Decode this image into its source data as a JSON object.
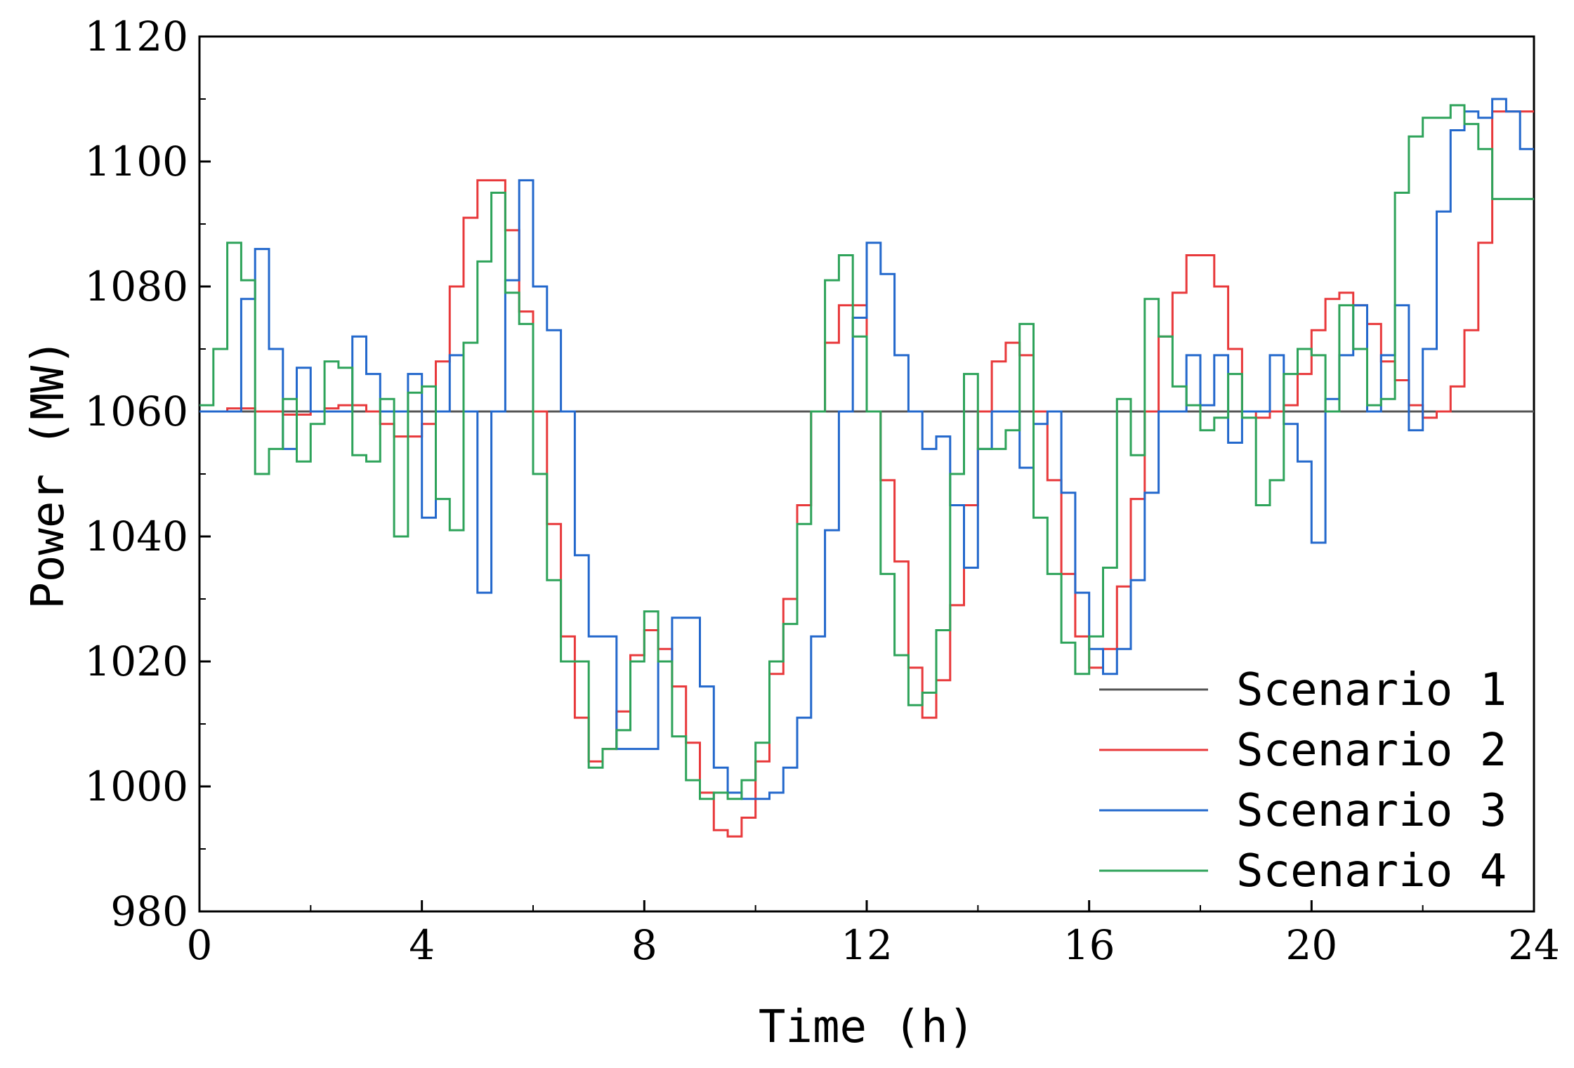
{
  "chart_data": {
    "type": "line",
    "title": "",
    "xlabel": "Time (h)",
    "ylabel": "Power (MW)",
    "xlim": [
      0,
      24
    ],
    "ylim": [
      980,
      1120
    ],
    "xticks": [
      0,
      4,
      8,
      12,
      16,
      20,
      24
    ],
    "yticks": [
      980,
      1000,
      1020,
      1040,
      1060,
      1080,
      1100,
      1120
    ],
    "legend_position": "bottom-right",
    "step": 0.25,
    "series": [
      {
        "name": "Scenario 1",
        "color": "#555555",
        "values": [
          1060,
          1060,
          1060,
          1060,
          1060,
          1060,
          1060,
          1060,
          1060,
          1060,
          1060,
          1060,
          1060,
          1060,
          1060,
          1060,
          1060,
          1060,
          1060,
          1060,
          1060,
          1060,
          1060,
          1060,
          1060,
          1060,
          1060,
          1060,
          1060,
          1060,
          1060,
          1060,
          1060,
          1060,
          1060,
          1060,
          1060,
          1060,
          1060,
          1060,
          1060,
          1060,
          1060,
          1060,
          1060,
          1060,
          1060,
          1060,
          1060,
          1060,
          1060,
          1060,
          1060,
          1060,
          1060,
          1060,
          1060,
          1060,
          1060,
          1060,
          1060,
          1060,
          1060,
          1060,
          1060,
          1060,
          1060,
          1060,
          1060,
          1060,
          1060,
          1060,
          1060,
          1060,
          1060,
          1060,
          1060,
          1060,
          1060,
          1060,
          1060,
          1060,
          1060,
          1060,
          1060,
          1060,
          1060,
          1060,
          1060,
          1060,
          1060,
          1060,
          1060,
          1060,
          1060,
          1060,
          1060
        ]
      },
      {
        "name": "Scenario 2",
        "color": "#e8393b",
        "values": [
          1060,
          1060,
          1060.5,
          1060.5,
          1060,
          1060,
          1059.5,
          1059.5,
          1060,
          1060.5,
          1061,
          1061,
          1060,
          1058,
          1056,
          1056,
          1058,
          1068,
          1080,
          1091,
          1097,
          1097,
          1089,
          1076,
          1060,
          1042,
          1024,
          1011,
          1004,
          1006,
          1012,
          1021,
          1025,
          1022,
          1016,
          1007,
          999,
          993,
          992,
          995,
          1004,
          1018,
          1030,
          1045,
          1060,
          1071,
          1077,
          1077,
          1060,
          1049,
          1036,
          1019,
          1011,
          1017,
          1029,
          1045,
          1060,
          1068,
          1071,
          1069,
          1060,
          1049,
          1034,
          1024,
          1019,
          1022,
          1032,
          1046,
          1060,
          1072,
          1079,
          1085,
          1085,
          1080,
          1070,
          1060,
          1059,
          1060,
          1061,
          1066,
          1073,
          1078,
          1079,
          1077,
          1074,
          1068,
          1065,
          1061,
          1059,
          1060,
          1064,
          1073,
          1087,
          1108,
          1108,
          1108,
          1108
        ]
      },
      {
        "name": "Scenario 3",
        "color": "#2368cc",
        "values": [
          1060,
          1060,
          1060,
          1078,
          1086,
          1070,
          1054,
          1067,
          1060,
          1060,
          1060,
          1072,
          1066,
          1060,
          1060,
          1066,
          1043,
          1060,
          1069,
          1060,
          1031,
          1060,
          1081,
          1097,
          1080,
          1073,
          1060,
          1037,
          1024,
          1024,
          1006,
          1006,
          1006,
          1020,
          1027,
          1027,
          1016,
          1003,
          999,
          998,
          998,
          999,
          1003,
          1011,
          1024,
          1041,
          1060,
          1075,
          1087,
          1082,
          1069,
          1060,
          1054,
          1056,
          1045,
          1035,
          1054,
          1060,
          1060,
          1051,
          1058,
          1060,
          1047,
          1031,
          1022,
          1018,
          1022,
          1033,
          1047,
          1060,
          1060,
          1069,
          1061,
          1069,
          1055,
          1060,
          1060,
          1069,
          1058,
          1052,
          1039,
          1062,
          1069,
          1077,
          1060,
          1069,
          1077,
          1057,
          1070,
          1092,
          1105,
          1108,
          1107,
          1110,
          1108,
          1102,
          1100
        ]
      },
      {
        "name": "Scenario 4",
        "color": "#2ea35a",
        "values": [
          1061,
          1070,
          1087,
          1081,
          1050,
          1054,
          1062,
          1052,
          1058,
          1068,
          1067,
          1053,
          1052,
          1062,
          1040,
          1063,
          1064,
          1046,
          1041,
          1071,
          1084,
          1095,
          1079,
          1074,
          1050,
          1033,
          1020,
          1020,
          1003,
          1006,
          1009,
          1020,
          1028,
          1020,
          1008,
          1001,
          998,
          999,
          998,
          1001,
          1007,
          1020,
          1026,
          1042,
          1060,
          1081,
          1085,
          1072,
          1060,
          1034,
          1021,
          1013,
          1015,
          1025,
          1050,
          1066,
          1054,
          1054,
          1057,
          1074,
          1043,
          1034,
          1023,
          1018,
          1024,
          1035,
          1062,
          1053,
          1078,
          1072,
          1064,
          1061,
          1057,
          1059,
          1066,
          1059,
          1045,
          1049,
          1066,
          1070,
          1069,
          1060,
          1077,
          1070,
          1061,
          1062,
          1095,
          1104,
          1107,
          1107,
          1109,
          1106,
          1102,
          1094,
          1094,
          1094,
          1094
        ]
      }
    ]
  }
}
